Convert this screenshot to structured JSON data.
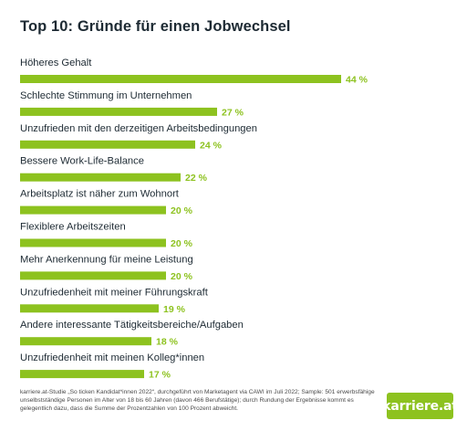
{
  "colors": {
    "bar": "#8dc21f",
    "value_label": "#8dc21f",
    "text": "#1d2a33",
    "logo_bg": "#8dc21f"
  },
  "chart_data": {
    "type": "bar",
    "orientation": "horizontal",
    "title": "Top 10: Gründe für einen Jobwechsel",
    "categories": [
      "Höheres Gehalt",
      "Schlechte Stimmung im Unternehmen",
      "Unzufrieden mit den derzeitigen Arbeitsbedingungen",
      "Bessere Work-Life-Balance",
      "Arbeitsplatz ist näher zum Wohnort",
      "Flexiblere Arbeitszeiten",
      "Mehr Anerkennung für meine Leistung",
      "Unzufriedenheit mit meiner Führungskraft",
      "Andere interessante Tätigkeitsbereiche/Aufgaben",
      "Unzufriedenheit mit meinen Kolleg*innen"
    ],
    "values": [
      44,
      27,
      24,
      22,
      20,
      20,
      20,
      19,
      18,
      17
    ],
    "value_labels": [
      "44 %",
      "27 %",
      "24 %",
      "22 %",
      "20 %",
      "20 %",
      "20 %",
      "19 %",
      "18 %",
      "17 %"
    ],
    "unit": "%",
    "grid": false,
    "legend": "none"
  },
  "footer": {
    "source_note": "karriere.at-Studie „So ticken Kandidat*innen 2022“, durchgeführt von Marketagent via CAWI im Juli 2022; Sample: 501 erwerbsfähige unselbstständige Personen im Alter von 18 bis 60 Jahren (davon 466 Berufstätige); durch Rundung der Ergebnisse kommt es gelegentlich dazu, dass die Summe der Prozentzahlen von 100 Prozent abweicht.",
    "logo_text": "karriere.at"
  }
}
